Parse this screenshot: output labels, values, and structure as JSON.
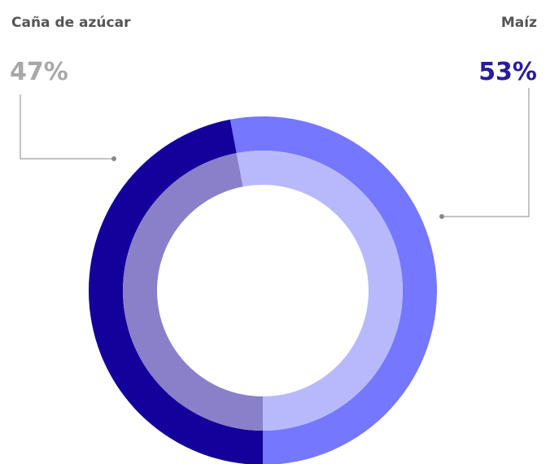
{
  "chart_data": {
    "type": "donut",
    "categories": [
      "Caña de azúcar",
      "Maíz"
    ],
    "values": [
      47,
      53
    ],
    "value_labels": [
      "47%",
      "53%"
    ],
    "colors": [
      "#14009a",
      "#7577ff"
    ],
    "inner_colors": [
      "#8a80c9",
      "#b8b9fc"
    ],
    "label_colors": [
      "#a8a8a8",
      "#2a1a9e"
    ]
  }
}
